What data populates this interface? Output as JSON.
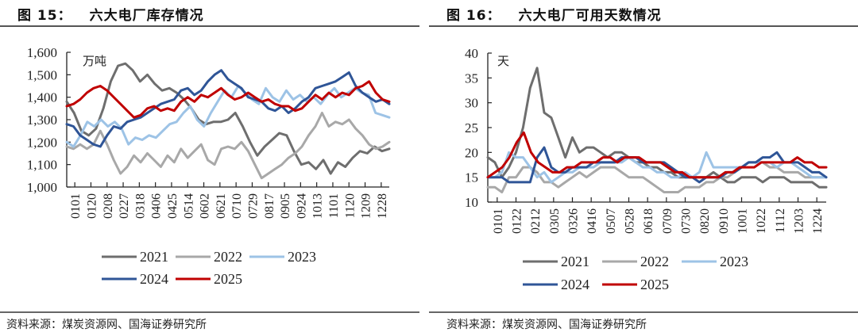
{
  "figures": [
    {
      "number": "图 15：",
      "title": "六大电厂库存情况",
      "source": "资料来源：煤炭资源网、国海证券研究所"
    },
    {
      "number": "图 16：",
      "title": "六大电厂可用天数情况",
      "source": "资料来源：煤炭资源网、国海证券研究所"
    }
  ],
  "chart_data": [
    {
      "type": "line",
      "title": "六大电厂库存情况",
      "ylabel": "万吨",
      "xlabel": "",
      "ylim": [
        1000,
        1600
      ],
      "yticks": [
        1000,
        1100,
        1200,
        1300,
        1400,
        1500,
        1600
      ],
      "ytick_labels": [
        "1,000",
        "1,100",
        "1,200",
        "1,300",
        "1,400",
        "1,500",
        "1,600"
      ],
      "categories": [
        "0101",
        "0120",
        "0208",
        "0227",
        "0318",
        "0406",
        "0425",
        "0514",
        "0602",
        "0621",
        "0710",
        "0729",
        "0817",
        "0905",
        "0924",
        "1013",
        "1101",
        "1120",
        "1209",
        "1228"
      ],
      "grid": false,
      "legend": "bottom",
      "series": [
        {
          "name": "2021",
          "color": "#6e6e6e",
          "values": [
            1380,
            1330,
            1250,
            1230,
            1260,
            1350,
            1470,
            1540,
            1550,
            1520,
            1470,
            1500,
            1460,
            1430,
            1440,
            1420,
            1390,
            1350,
            1300,
            1280,
            1290,
            1290,
            1300,
            1330,
            1270,
            1200,
            1140,
            1180,
            1210,
            1240,
            1230,
            1160,
            1100,
            1110,
            1080,
            1120,
            1060,
            1110,
            1090,
            1130,
            1160,
            1150,
            1180,
            1160,
            1170
          ]
        },
        {
          "name": "2022",
          "color": "#a8a8a8",
          "values": [
            1180,
            1170,
            1190,
            1170,
            1190,
            1250,
            1190,
            1120,
            1060,
            1090,
            1140,
            1110,
            1150,
            1120,
            1090,
            1140,
            1110,
            1170,
            1130,
            1160,
            1190,
            1120,
            1100,
            1170,
            1180,
            1170,
            1200,
            1160,
            1100,
            1040,
            1060,
            1080,
            1100,
            1130,
            1150,
            1180,
            1230,
            1270,
            1330,
            1270,
            1290,
            1280,
            1300,
            1260,
            1230,
            1190,
            1170,
            1180,
            1200
          ]
        },
        {
          "name": "2023",
          "color": "#9dc3e6",
          "values": [
            1200,
            1180,
            1230,
            1290,
            1270,
            1300,
            1270,
            1290,
            1260,
            1190,
            1220,
            1210,
            1230,
            1220,
            1250,
            1280,
            1290,
            1330,
            1360,
            1300,
            1270,
            1330,
            1380,
            1430,
            1400,
            1450,
            1420,
            1390,
            1370,
            1440,
            1400,
            1380,
            1430,
            1390,
            1410,
            1380,
            1400,
            1370,
            1410,
            1440,
            1400,
            1420,
            1440,
            1420,
            1410,
            1330,
            1320,
            1310
          ]
        },
        {
          "name": "2024",
          "color": "#2f5597",
          "values": [
            1280,
            1270,
            1230,
            1210,
            1190,
            1180,
            1230,
            1270,
            1260,
            1290,
            1300,
            1310,
            1330,
            1350,
            1370,
            1380,
            1390,
            1430,
            1440,
            1410,
            1430,
            1470,
            1500,
            1520,
            1480,
            1460,
            1440,
            1400,
            1390,
            1380,
            1350,
            1340,
            1360,
            1330,
            1350,
            1380,
            1400,
            1440,
            1450,
            1460,
            1470,
            1490,
            1510,
            1450,
            1420,
            1400,
            1380,
            1390,
            1370
          ]
        },
        {
          "name": "2025",
          "color": "#c00000",
          "values": [
            1360,
            1370,
            1390,
            1420,
            1440,
            1450,
            1430,
            1400,
            1370,
            1340,
            1310,
            1320,
            1350,
            1360,
            1340,
            1350,
            1340,
            1380,
            1400,
            1380,
            1410,
            1400,
            1420,
            1440,
            1410,
            1390,
            1400,
            1420,
            1400,
            1380,
            1390,
            1370,
            1360,
            1360,
            1340,
            1350,
            1380,
            1410,
            1390,
            1420,
            1400,
            1420,
            1410,
            1440,
            1450,
            1470,
            1420,
            1390,
            1380
          ]
        }
      ]
    },
    {
      "type": "line",
      "title": "六大电厂可用天数情况",
      "ylabel": "天",
      "xlabel": "",
      "ylim": [
        10,
        40
      ],
      "yticks": [
        10,
        15,
        20,
        25,
        30,
        35,
        40
      ],
      "ytick_labels": [
        "10",
        "15",
        "20",
        "25",
        "30",
        "35",
        "40"
      ],
      "categories": [
        "0101",
        "0122",
        "0212",
        "0305",
        "0326",
        "0416",
        "0507",
        "0528",
        "0618",
        "0709",
        "0730",
        "0820",
        "0910",
        "1001",
        "1022",
        "1112",
        "1203",
        "1224"
      ],
      "grid": false,
      "legend": "bottom",
      "series": [
        {
          "name": "2021",
          "color": "#6e6e6e",
          "values": [
            19,
            18,
            15,
            17,
            20,
            25,
            33,
            37,
            28,
            27,
            23,
            19,
            23,
            20,
            21,
            21,
            20,
            19,
            20,
            20,
            19,
            18,
            18,
            17,
            17,
            16,
            16,
            15,
            15,
            15,
            15,
            15,
            16,
            15,
            14,
            14,
            15,
            15,
            15,
            14,
            15,
            15,
            15,
            14,
            14,
            14,
            14,
            13,
            13
          ]
        },
        {
          "name": "2022",
          "color": "#a8a8a8",
          "values": [
            13,
            13,
            12,
            15,
            15,
            17,
            17,
            16,
            14,
            14,
            13,
            14,
            15,
            16,
            15,
            16,
            17,
            17,
            17,
            16,
            15,
            15,
            15,
            14,
            13,
            12,
            12,
            12,
            13,
            13,
            13,
            14,
            14,
            15,
            15,
            16,
            17,
            18,
            18,
            18,
            17,
            17,
            16,
            16,
            16,
            15,
            15,
            15,
            15
          ]
        },
        {
          "name": "2023",
          "color": "#9dc3e6",
          "values": [
            15,
            15,
            16,
            20,
            19,
            19,
            17,
            15,
            16,
            14,
            15,
            16,
            16,
            17,
            17,
            17,
            18,
            18,
            18,
            18,
            19,
            18,
            17,
            17,
            16,
            16,
            15,
            15,
            16,
            15,
            16,
            20,
            17,
            17,
            17,
            17,
            17,
            18,
            18,
            18,
            18,
            17,
            18,
            18,
            17,
            16,
            15,
            15,
            15
          ]
        },
        {
          "name": "2024",
          "color": "#2f5597",
          "values": [
            15,
            15,
            15,
            14,
            14,
            14,
            14,
            19,
            21,
            17,
            16,
            16,
            17,
            17,
            17,
            18,
            18,
            18,
            18,
            19,
            19,
            19,
            18,
            18,
            18,
            18,
            17,
            16,
            15,
            15,
            14,
            15,
            15,
            15,
            16,
            16,
            17,
            18,
            18,
            19,
            19,
            20,
            18,
            18,
            18,
            17,
            16,
            16,
            15
          ]
        },
        {
          "name": "2025",
          "color": "#c00000",
          "values": [
            15,
            16,
            17,
            19,
            22,
            24,
            20,
            18,
            17,
            16,
            16,
            17,
            17,
            18,
            18,
            18,
            19,
            19,
            18,
            19,
            19,
            19,
            18,
            18,
            18,
            17,
            16,
            16,
            15,
            15,
            15,
            15,
            15,
            16,
            16,
            17,
            17,
            17,
            18,
            18,
            18,
            18,
            18,
            19,
            18,
            18,
            17,
            17
          ]
        }
      ]
    }
  ]
}
